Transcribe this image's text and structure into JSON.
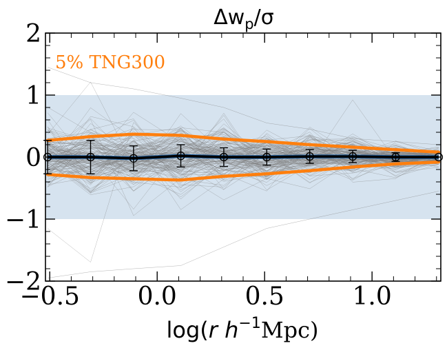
{
  "chart_data": {
    "type": "line",
    "title_main": "Δw",
    "title_sub": "p",
    "title_tail": "/σ",
    "xlabel_prefix": "log(",
    "xlabel_var": "r h",
    "xlabel_sup": "−1",
    "xlabel_suffix": "Mpc)",
    "ylabel": "",
    "xlim": [
      -0.52,
      1.32
    ],
    "ylim": [
      -2,
      2
    ],
    "x_ticks": [
      -0.5,
      0.0,
      0.5,
      1.0
    ],
    "x_tick_labels": [
      "−0.5",
      "0.0",
      "0.5",
      "1.0"
    ],
    "y_ticks": [
      -2,
      -1,
      0,
      1,
      2
    ],
    "y_tick_labels": [
      "−2",
      "−1",
      "0",
      "1",
      "2"
    ],
    "shaded_band": {
      "lower": -1,
      "upper": 1,
      "color": "#d6e3ef"
    },
    "annotation": {
      "text": "5% TNG300",
      "color": "#ff7f0e",
      "placement": "top-left"
    },
    "x": [
      -0.51,
      -0.31,
      -0.11,
      0.11,
      0.31,
      0.51,
      0.71,
      0.91,
      1.11,
      1.31
    ],
    "series": [
      {
        "role": "median",
        "color": "#000000",
        "values": [
          0.0,
          0.0,
          -0.02,
          0.02,
          0.0,
          0.0,
          0.01,
          0.01,
          0.0,
          0.0
        ],
        "errors": [
          0.27,
          0.27,
          0.2,
          0.18,
          0.15,
          0.13,
          0.11,
          0.1,
          0.07,
          0.0
        ]
      },
      {
        "role": "upper-envelope",
        "color": "#ff7f0e",
        "values": [
          0.27,
          0.33,
          0.37,
          0.35,
          0.29,
          0.25,
          0.2,
          0.16,
          0.12,
          0.08
        ]
      },
      {
        "role": "lower-envelope",
        "color": "#ff7f0e",
        "values": [
          -0.28,
          -0.33,
          -0.35,
          -0.37,
          -0.31,
          -0.27,
          -0.22,
          -0.16,
          -0.11,
          -0.08
        ]
      }
    ],
    "realization_color": "#7f7f7f",
    "realization_count": 140
  }
}
